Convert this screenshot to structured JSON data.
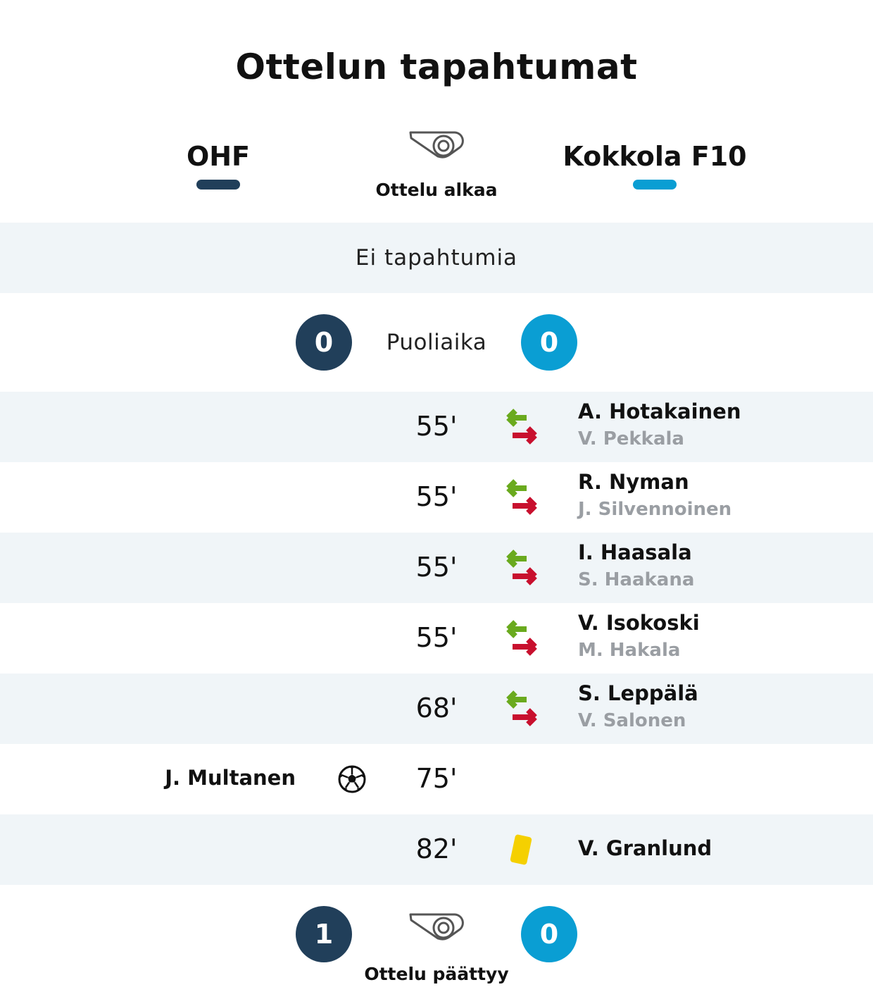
{
  "title": "Ottelun tapahtumat",
  "teams": {
    "home": {
      "name": "OHF",
      "color": "#213f5a"
    },
    "away": {
      "name": "Kokkola F10",
      "color": "#0a9ed3"
    }
  },
  "start": {
    "label": "Ottelu alkaa",
    "icon": "whistle-icon"
  },
  "first_half": {
    "no_events": "Ei tapahtumia"
  },
  "halftime": {
    "label": "Puoliaika",
    "home_score": "0",
    "away_score": "0"
  },
  "events": [
    {
      "minute": "55'",
      "type": "substitution",
      "in": "A. Hotakainen",
      "out": "V. Pekkala"
    },
    {
      "minute": "55'",
      "type": "substitution",
      "in": "R. Nyman",
      "out": "J. Silvennoinen"
    },
    {
      "minute": "55'",
      "type": "substitution",
      "in": "I. Haasala",
      "out": "S. Haakana"
    },
    {
      "minute": "55'",
      "type": "substitution",
      "in": "V. Isokoski",
      "out": "M. Hakala"
    },
    {
      "minute": "68'",
      "type": "substitution",
      "in": "S. Leppälä",
      "out": "V. Salonen"
    },
    {
      "minute": "75'",
      "type": "goal",
      "player": "J. Multanen"
    },
    {
      "minute": "82'",
      "type": "yellow-card",
      "player": "V. Granlund"
    }
  ],
  "end": {
    "label": "Ottelu päättyy",
    "home_score": "1",
    "away_score": "0",
    "icon": "whistle-icon"
  },
  "colors": {
    "sub_in": "#6aaa1e",
    "sub_out": "#c8102e",
    "yellow_card": "#f5d000",
    "row_shade": "#f0f5f8"
  }
}
